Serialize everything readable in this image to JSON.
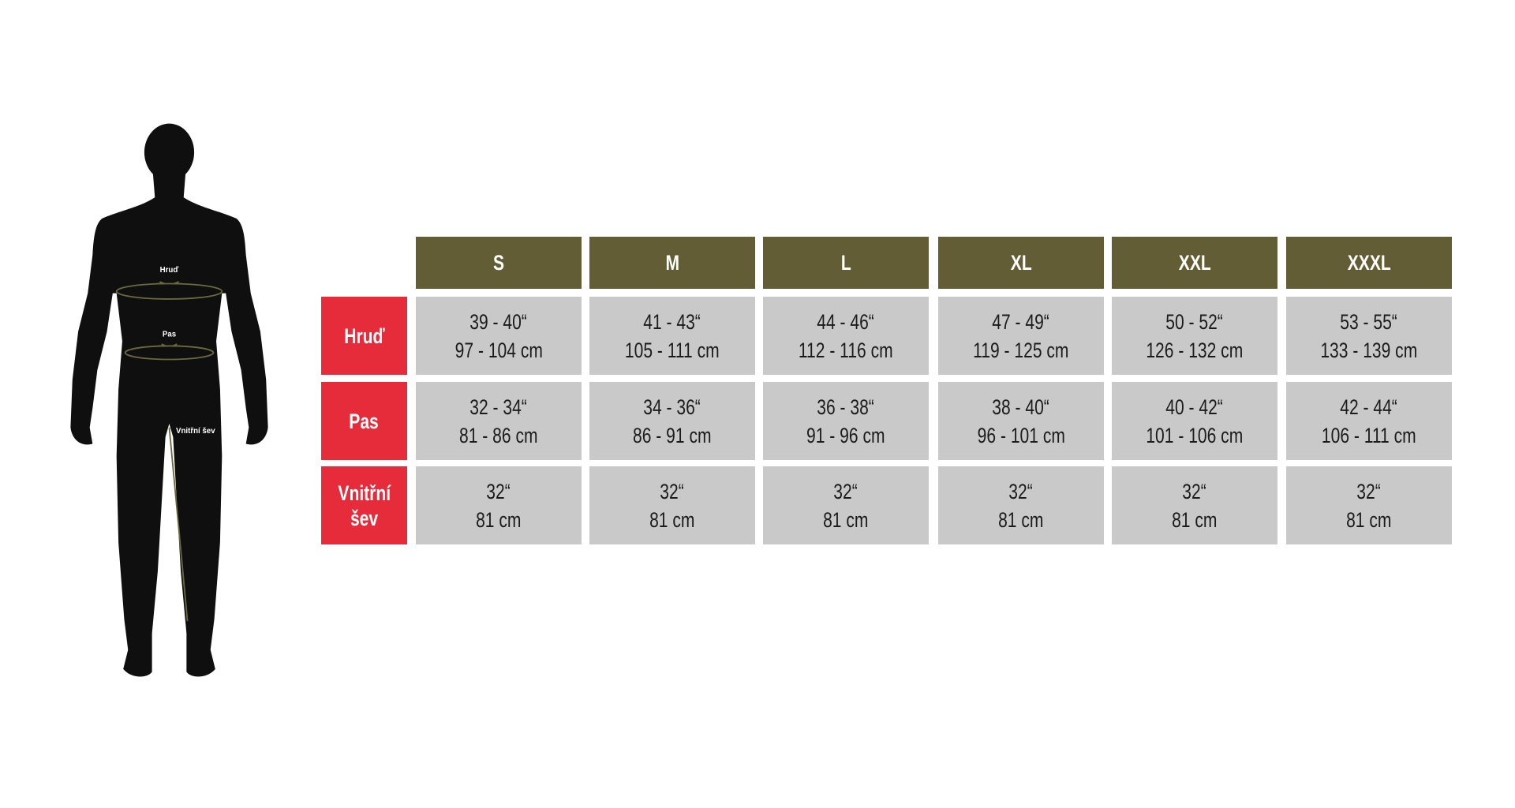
{
  "figure": {
    "chest_label": "Hruď",
    "waist_label": "Pas",
    "inseam_label": "Vnitřní šev",
    "measure_color": "#6b6a3f"
  },
  "colors": {
    "header": "#625d34",
    "row_label": "#e62b3a",
    "cell": "#c9c9c9"
  },
  "table": {
    "sizes": [
      "S",
      "M",
      "L",
      "XL",
      "XXL",
      "XXXL"
    ],
    "rows": [
      {
        "label": "Hruď",
        "label_lines": [
          "Hruď"
        ],
        "cells": [
          [
            "39 - 40“",
            "97 - 104 cm"
          ],
          [
            "41 - 43“",
            "105 - 111 cm"
          ],
          [
            "44 - 46“",
            "112 - 116 cm"
          ],
          [
            "47 - 49“",
            "119 - 125 cm"
          ],
          [
            "50 - 52“",
            "126 - 132 cm"
          ],
          [
            "53 - 55“",
            "133 - 139 cm"
          ]
        ]
      },
      {
        "label": "Pas",
        "label_lines": [
          "Pas"
        ],
        "cells": [
          [
            "32 - 34“",
            "81 - 86 cm"
          ],
          [
            "34 - 36“",
            "86 - 91 cm"
          ],
          [
            "36 - 38“",
            "91 - 96 cm"
          ],
          [
            "38 - 40“",
            "96 - 101 cm"
          ],
          [
            "40 - 42“",
            "101 - 106 cm"
          ],
          [
            "42 - 44“",
            "106 - 111 cm"
          ]
        ]
      },
      {
        "label": "Vnitřní šev",
        "label_lines": [
          "Vnitřní",
          "šev"
        ],
        "cells": [
          [
            "32“",
            "81 cm"
          ],
          [
            "32“",
            "81 cm"
          ],
          [
            "32“",
            "81 cm"
          ],
          [
            "32“",
            "81 cm"
          ],
          [
            "32“",
            "81 cm"
          ],
          [
            "32“",
            "81 cm"
          ]
        ]
      }
    ]
  }
}
